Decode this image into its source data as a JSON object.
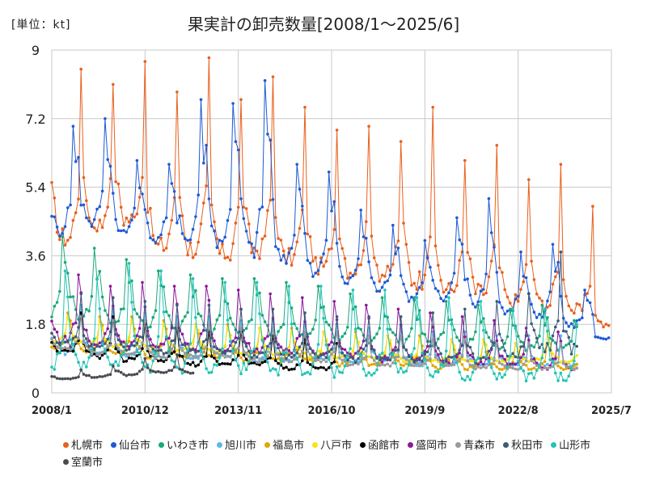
{
  "chart_data": {
    "type": "line",
    "unit_label": "[単位：kt]",
    "title": "果実計の卸売数量[2008/1～2025/6]",
    "xlabel": "",
    "ylabel": "",
    "x_range": [
      "2008/1",
      "2025/7"
    ],
    "ylim": [
      0,
      9
    ],
    "y_ticks": [
      "0",
      "1.8",
      "3.6",
      "5.4",
      "7.2",
      "9"
    ],
    "x_ticks": [
      "2008/1",
      "2010/12",
      "2013/11",
      "2016/10",
      "2019/9",
      "2022/8",
      "2025/7"
    ],
    "grid": true,
    "legend_position": "bottom",
    "series": [
      {
        "name": "札幌市",
        "color": "#e8601c",
        "start": "2008/1",
        "end": "2025/6",
        "peak_months": [
          12
        ],
        "years": [
          [
            "2008",
            3.8,
            8.5
          ],
          [
            "2009",
            4.2,
            8.1
          ],
          [
            "2010",
            4.3,
            8.7
          ],
          [
            "2011",
            3.6,
            7.9
          ],
          [
            "2012",
            3.5,
            8.8
          ],
          [
            "2013",
            3.4,
            7.7
          ],
          [
            "2014",
            3.5,
            8.3
          ],
          [
            "2015",
            3.3,
            7.5
          ],
          [
            "2016",
            3.1,
            6.9
          ],
          [
            "2017",
            3.0,
            7.0
          ],
          [
            "2018",
            2.9,
            6.6
          ],
          [
            "2019",
            2.7,
            7.5
          ],
          [
            "2020",
            2.5,
            6.1
          ],
          [
            "2021",
            2.4,
            6.5
          ],
          [
            "2022",
            2.2,
            5.6
          ],
          [
            "2023",
            2.1,
            6.0
          ],
          [
            "2024",
            2.0,
            4.9
          ],
          [
            "2025",
            1.7,
            2.7
          ]
        ]
      },
      {
        "name": "仙台市",
        "color": "#1e5ad4",
        "start": "2008/1",
        "end": "2025/6",
        "peak_months": [
          9,
          10,
          11
        ],
        "years": [
          [
            "2008",
            4.1,
            7.0
          ],
          [
            "2009",
            4.3,
            7.2
          ],
          [
            "2010",
            4.1,
            6.1
          ],
          [
            "2011",
            3.9,
            6.0
          ],
          [
            "2012",
            3.8,
            7.7
          ],
          [
            "2013",
            3.7,
            7.6
          ],
          [
            "2014",
            3.5,
            8.2
          ],
          [
            "2015",
            3.3,
            6.0
          ],
          [
            "2016",
            3.0,
            5.8
          ],
          [
            "2017",
            2.8,
            4.8
          ],
          [
            "2018",
            2.6,
            4.4
          ],
          [
            "2019",
            2.4,
            4.0
          ],
          [
            "2020",
            2.3,
            4.6
          ],
          [
            "2021",
            2.2,
            5.1
          ],
          [
            "2022",
            2.0,
            3.7
          ],
          [
            "2023",
            1.9,
            3.9
          ],
          [
            "2024",
            1.7,
            2.7
          ],
          [
            "2025",
            1.4,
            1.8
          ]
        ]
      },
      {
        "name": "いわき市",
        "color": "#1aa87a",
        "start": "2008/1",
        "end": "2024/6",
        "peak_months": [
          5,
          6,
          7
        ],
        "years": [
          [
            "2008",
            1.9,
            4.1
          ],
          [
            "2009",
            1.8,
            3.8
          ],
          [
            "2010",
            1.7,
            3.5
          ],
          [
            "2011",
            1.6,
            3.2
          ],
          [
            "2012",
            1.6,
            3.1
          ],
          [
            "2013",
            1.5,
            3.0
          ],
          [
            "2014",
            1.5,
            3.0
          ],
          [
            "2015",
            1.4,
            2.9
          ],
          [
            "2016",
            1.4,
            2.8
          ],
          [
            "2017",
            1.3,
            2.6
          ],
          [
            "2018",
            1.3,
            2.5
          ],
          [
            "2019",
            1.2,
            2.5
          ],
          [
            "2020",
            1.2,
            2.4
          ],
          [
            "2021",
            1.2,
            2.3
          ],
          [
            "2022",
            1.1,
            2.2
          ],
          [
            "2023",
            1.1,
            2.3
          ],
          [
            "2024",
            1.1,
            1.9
          ]
        ]
      },
      {
        "name": "旭川市",
        "color": "#5ab8ea",
        "start": "2008/1",
        "end": "2024/6",
        "peak_months": [
          12
        ],
        "years": [
          [
            "2008",
            1.0,
            2.3
          ],
          [
            "2009",
            1.0,
            2.2
          ],
          [
            "2010",
            0.9,
            2.1
          ],
          [
            "2011",
            0.9,
            2.0
          ],
          [
            "2012",
            0.9,
            2.0
          ],
          [
            "2013",
            0.9,
            1.9
          ],
          [
            "2014",
            0.8,
            1.9
          ],
          [
            "2015",
            0.8,
            1.8
          ],
          [
            "2016",
            0.8,
            1.8
          ],
          [
            "2017",
            0.8,
            1.7
          ],
          [
            "2018",
            0.8,
            1.7
          ],
          [
            "2019",
            0.7,
            1.6
          ],
          [
            "2020",
            0.7,
            1.6
          ],
          [
            "2021",
            0.7,
            1.5
          ],
          [
            "2022",
            0.7,
            1.5
          ],
          [
            "2023",
            0.7,
            1.5
          ],
          [
            "2024",
            0.7,
            1.2
          ]
        ]
      },
      {
        "name": "福島市",
        "color": "#e0a800",
        "start": "2008/1",
        "end": "2024/6",
        "peak_months": [
          7,
          8
        ],
        "years": [
          [
            "2008",
            1.1,
            2.1
          ],
          [
            "2009",
            1.0,
            2.0
          ],
          [
            "2010",
            1.0,
            2.0
          ],
          [
            "2011",
            0.9,
            1.9
          ],
          [
            "2012",
            0.9,
            1.8
          ],
          [
            "2013",
            0.9,
            1.8
          ],
          [
            "2014",
            0.8,
            1.7
          ],
          [
            "2015",
            0.8,
            1.7
          ],
          [
            "2016",
            0.8,
            1.6
          ],
          [
            "2017",
            0.7,
            1.6
          ],
          [
            "2018",
            0.7,
            1.5
          ],
          [
            "2019",
            0.7,
            1.5
          ],
          [
            "2020",
            0.6,
            1.4
          ],
          [
            "2021",
            0.6,
            1.4
          ],
          [
            "2022",
            0.6,
            1.3
          ],
          [
            "2023",
            0.6,
            1.3
          ],
          [
            "2024",
            0.6,
            1.0
          ]
        ]
      },
      {
        "name": "八戸市",
        "color": "#f2e61a",
        "start": "2008/1",
        "end": "2024/6",
        "peak_months": [
          7,
          8
        ],
        "years": [
          [
            "2008",
            1.3,
            2.0
          ],
          [
            "2009",
            1.2,
            1.9
          ],
          [
            "2010",
            1.2,
            1.9
          ],
          [
            "2011",
            1.1,
            1.8
          ],
          [
            "2012",
            1.1,
            1.8
          ],
          [
            "2013",
            1.0,
            1.7
          ],
          [
            "2014",
            1.0,
            1.7
          ],
          [
            "2015",
            1.0,
            1.6
          ],
          [
            "2016",
            0.9,
            1.6
          ],
          [
            "2017",
            0.9,
            1.5
          ],
          [
            "2018",
            0.9,
            1.5
          ],
          [
            "2019",
            0.8,
            1.4
          ],
          [
            "2020",
            0.8,
            1.4
          ],
          [
            "2021",
            0.8,
            1.4
          ],
          [
            "2022",
            0.8,
            1.3
          ],
          [
            "2023",
            0.8,
            1.6
          ],
          [
            "2024",
            0.8,
            1.3
          ]
        ]
      },
      {
        "name": "函館市",
        "color": "#000000",
        "start": "2008/1",
        "end": "2016/12",
        "peak_months": [
          12
        ],
        "years": [
          [
            "2008",
            1.0,
            2.1
          ],
          [
            "2009",
            0.9,
            2.0
          ],
          [
            "2010",
            0.8,
            1.8
          ],
          [
            "2011",
            0.8,
            1.7
          ],
          [
            "2012",
            0.7,
            1.6
          ],
          [
            "2013",
            0.7,
            1.6
          ],
          [
            "2014",
            0.7,
            1.5
          ],
          [
            "2015",
            0.6,
            1.4
          ],
          [
            "2016",
            0.6,
            1.3
          ]
        ]
      },
      {
        "name": "盛岡市",
        "color": "#8b1a9c",
        "start": "2008/1",
        "end": "2024/6",
        "peak_months": [
          11,
          12
        ],
        "years": [
          [
            "2008",
            1.3,
            3.1
          ],
          [
            "2009",
            1.2,
            2.8
          ],
          [
            "2010",
            1.2,
            2.9
          ],
          [
            "2011",
            1.1,
            2.8
          ],
          [
            "2012",
            1.1,
            2.8
          ],
          [
            "2013",
            1.0,
            2.7
          ],
          [
            "2014",
            1.0,
            2.6
          ],
          [
            "2015",
            1.0,
            2.5
          ],
          [
            "2016",
            0.9,
            2.4
          ],
          [
            "2017",
            0.9,
            2.3
          ],
          [
            "2018",
            0.8,
            2.2
          ],
          [
            "2019",
            0.8,
            2.1
          ],
          [
            "2020",
            0.7,
            2.0
          ],
          [
            "2021",
            0.7,
            1.9
          ],
          [
            "2022",
            0.7,
            1.7
          ],
          [
            "2023",
            0.6,
            1.6
          ],
          [
            "2024",
            0.6,
            1.1
          ]
        ]
      },
      {
        "name": "青森市",
        "color": "#9a9a9a",
        "start": "2008/1",
        "end": "2024/6",
        "peak_months": [
          12
        ],
        "years": [
          [
            "2008",
            1.1,
            2.0
          ],
          [
            "2009",
            1.0,
            1.9
          ],
          [
            "2010",
            1.0,
            1.9
          ],
          [
            "2011",
            0.9,
            1.8
          ],
          [
            "2012",
            0.9,
            1.8
          ],
          [
            "2013",
            0.9,
            1.7
          ],
          [
            "2014",
            0.8,
            1.7
          ],
          [
            "2015",
            0.8,
            1.6
          ],
          [
            "2016",
            0.8,
            1.6
          ],
          [
            "2017",
            0.7,
            1.5
          ],
          [
            "2018",
            0.7,
            1.5
          ],
          [
            "2019",
            0.7,
            1.4
          ],
          [
            "2020",
            0.7,
            1.4
          ],
          [
            "2021",
            0.6,
            1.3
          ],
          [
            "2022",
            0.6,
            1.3
          ],
          [
            "2023",
            0.6,
            1.3
          ],
          [
            "2024",
            0.6,
            1.1
          ]
        ]
      },
      {
        "name": "秋田市",
        "color": "#3d5a78",
        "start": "2008/1",
        "end": "2024/6",
        "peak_months": [
          12
        ],
        "years": [
          [
            "2008",
            1.2,
            2.6
          ],
          [
            "2009",
            1.1,
            2.5
          ],
          [
            "2010",
            1.1,
            2.4
          ],
          [
            "2011",
            1.0,
            2.3
          ],
          [
            "2012",
            1.0,
            2.3
          ],
          [
            "2013",
            1.0,
            2.2
          ],
          [
            "2014",
            0.9,
            2.2
          ],
          [
            "2015",
            0.9,
            2.1
          ],
          [
            "2016",
            0.9,
            2.0
          ],
          [
            "2017",
            0.8,
            2.0
          ],
          [
            "2018",
            0.8,
            2.0
          ],
          [
            "2019",
            0.8,
            2.1
          ],
          [
            "2020",
            0.8,
            2.2
          ],
          [
            "2021",
            0.8,
            2.4
          ],
          [
            "2022",
            0.9,
            2.6
          ],
          [
            "2023",
            1.0,
            3.7
          ],
          [
            "2024",
            1.0,
            3.4
          ]
        ]
      },
      {
        "name": "山形市",
        "color": "#22c4b4",
        "start": "2008/1",
        "end": "2024/6",
        "peak_months": [
          6,
          7
        ],
        "years": [
          [
            "2008",
            0.6,
            3.2
          ],
          [
            "2009",
            0.6,
            3.0
          ],
          [
            "2010",
            0.5,
            3.4
          ],
          [
            "2011",
            0.5,
            3.2
          ],
          [
            "2012",
            0.5,
            3.0
          ],
          [
            "2013",
            0.5,
            2.9
          ],
          [
            "2014",
            0.5,
            2.9
          ],
          [
            "2015",
            0.4,
            2.8
          ],
          [
            "2016",
            0.4,
            2.8
          ],
          [
            "2017",
            0.4,
            2.7
          ],
          [
            "2018",
            0.4,
            2.7
          ],
          [
            "2019",
            0.4,
            2.5
          ],
          [
            "2020",
            0.3,
            2.5
          ],
          [
            "2021",
            0.3,
            2.4
          ],
          [
            "2022",
            0.3,
            2.2
          ],
          [
            "2023",
            0.3,
            2.2
          ],
          [
            "2024",
            0.3,
            1.8
          ]
        ]
      },
      {
        "name": "室蘭市",
        "color": "#4a4a52",
        "start": "2008/1",
        "end": "2012/6",
        "peak_months": [
          12
        ],
        "years": [
          [
            "2008",
            0.35,
            0.6
          ],
          [
            "2009",
            0.4,
            0.7
          ],
          [
            "2010",
            0.45,
            0.9
          ],
          [
            "2011",
            0.5,
            1.0
          ],
          [
            "2012",
            0.5,
            0.9
          ]
        ]
      }
    ]
  }
}
